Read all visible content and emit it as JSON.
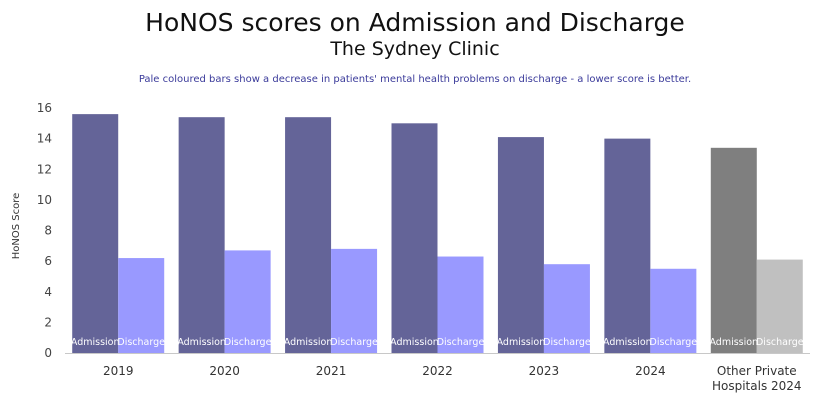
{
  "chart_data": {
    "type": "bar",
    "title": "HoNOS scores on Admission and Discharge",
    "subtitle": "The Sydney Clinic",
    "annotation": "Pale coloured bars show a decrease in patients' mental health problems on discharge - a lower score is better.",
    "xlabel": "",
    "ylabel": "HoNOS Score",
    "ylim": [
      0,
      16
    ],
    "yticks": [
      0,
      2,
      4,
      6,
      8,
      10,
      12,
      14,
      16
    ],
    "grid": false,
    "legend": "none",
    "categories": [
      [
        "2019"
      ],
      [
        "2020"
      ],
      [
        "2021"
      ],
      [
        "2022"
      ],
      [
        "2023"
      ],
      [
        "2024"
      ],
      [
        "Other Private",
        "Hospitals 2024"
      ]
    ],
    "series": [
      {
        "name": "Admission",
        "values": [
          15.6,
          15.4,
          15.4,
          15.0,
          14.1,
          14.0,
          13.4
        ]
      },
      {
        "name": "Discharge",
        "values": [
          6.2,
          6.7,
          6.8,
          6.3,
          5.8,
          5.5,
          6.1
        ]
      }
    ],
    "colors": {
      "admission": "#646498",
      "discharge": "#9999ff",
      "admission_comparison": "#7f7f7f",
      "discharge_comparison": "#c0c0c0",
      "axis": "#c8c8c8"
    }
  }
}
